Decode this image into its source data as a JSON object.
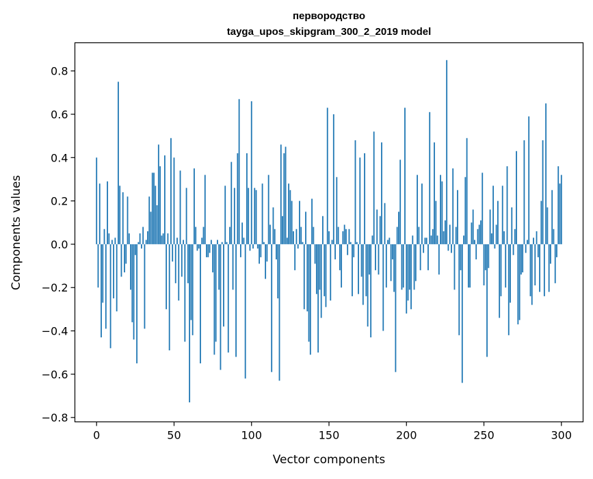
{
  "chart_data": {
    "type": "bar",
    "title": "первородство",
    "subtitle": "tayga_upos_skipgram_300_2_2019 model",
    "xlabel": "Vector components",
    "ylabel": "Components values",
    "xlim": [
      -14,
      314
    ],
    "ylim": [
      -0.82,
      0.93
    ],
    "x_ticks": [
      0,
      50,
      100,
      150,
      200,
      250,
      300
    ],
    "x_tick_labels": [
      "0",
      "50",
      "100",
      "150",
      "200",
      "250",
      "300"
    ],
    "y_ticks": [
      -0.8,
      -0.6,
      -0.4,
      -0.2,
      0.0,
      0.2,
      0.4,
      0.6,
      0.8
    ],
    "y_tick_labels": [
      "−0.8",
      "−0.6",
      "−0.4",
      "−0.2",
      "0.0",
      "0.2",
      "0.4",
      "0.6",
      "0.8"
    ],
    "grid": false,
    "bar_color": "#1f77b4",
    "values": [
      0.4,
      -0.2,
      0.28,
      -0.43,
      -0.27,
      0.07,
      -0.39,
      0.29,
      0.05,
      -0.48,
      0.02,
      -0.25,
      0.03,
      -0.31,
      0.75,
      0.27,
      -0.15,
      0.24,
      -0.13,
      -0.09,
      0.22,
      0.05,
      -0.21,
      -0.36,
      -0.44,
      -0.05,
      -0.55,
      0.01,
      0.05,
      -0.02,
      0.08,
      -0.39,
      0.02,
      0.06,
      0.22,
      0.15,
      0.33,
      0.33,
      0.27,
      0.18,
      0.46,
      0.36,
      0.04,
      0.05,
      0.41,
      -0.3,
      0.05,
      -0.49,
      0.49,
      -0.08,
      0.4,
      -0.18,
      0.03,
      -0.26,
      0.34,
      -0.15,
      0.02,
      -0.45,
      0.26,
      -0.18,
      -0.73,
      -0.35,
      -0.42,
      0.35,
      0.08,
      -0.03,
      -0.02,
      -0.55,
      0.03,
      0.08,
      0.32,
      -0.06,
      -0.06,
      -0.04,
      0.02,
      -0.13,
      -0.51,
      -0.45,
      0.02,
      -0.21,
      -0.58,
      0.01,
      -0.38,
      0.27,
      0.01,
      -0.5,
      0.08,
      0.38,
      -0.21,
      0.26,
      -0.52,
      0.42,
      0.67,
      -0.06,
      0.1,
      0.03,
      -0.62,
      0.42,
      0.26,
      -0.03,
      0.66,
      -0.02,
      0.26,
      0.25,
      -0.02,
      -0.09,
      -0.06,
      0.28,
      0.01,
      -0.16,
      -0.08,
      0.32,
      0.09,
      -0.59,
      0.17,
      0.07,
      -0.07,
      -0.25,
      -0.63,
      0.46,
      0.13,
      0.42,
      0.45,
      0.03,
      0.28,
      0.25,
      0.2,
      0.06,
      -0.12,
      0.07,
      -0.02,
      0.2,
      0.08,
      0.01,
      -0.3,
      0.15,
      -0.31,
      -0.45,
      -0.51,
      0.21,
      0.08,
      -0.09,
      -0.23,
      -0.5,
      -0.21,
      -0.34,
      0.13,
      -0.24,
      -0.29,
      0.63,
      0.06,
      -0.26,
      0.02,
      0.6,
      -0.07,
      0.31,
      0.08,
      -0.12,
      -0.2,
      0.06,
      0.09,
      0.07,
      -0.05,
      0.07,
      0.01,
      -0.24,
      -0.06,
      0.48,
      0.01,
      -0.23,
      0.4,
      -0.15,
      -0.28,
      0.42,
      -0.24,
      -0.38,
      -0.14,
      -0.43,
      0.04,
      0.52,
      -0.12,
      0.16,
      -0.14,
      0.13,
      0.47,
      -0.4,
      0.19,
      -0.2,
      0.02,
      0.03,
      -0.17,
      -0.07,
      -0.22,
      -0.59,
      0.08,
      0.15,
      0.39,
      -0.21,
      -0.2,
      0.63,
      -0.32,
      -0.26,
      -0.21,
      -0.3,
      0.04,
      -0.21,
      -0.17,
      0.32,
      0.08,
      -0.12,
      0.28,
      -0.04,
      0.03,
      0.03,
      -0.12,
      0.61,
      0.04,
      0.07,
      0.47,
      0.2,
      0.04,
      -0.14,
      0.32,
      0.29,
      0.06,
      0.11,
      0.85,
      -0.03,
      0.09,
      -0.04,
      0.35,
      -0.21,
      0.08,
      0.25,
      -0.42,
      -0.12,
      -0.64,
      0.04,
      0.31,
      0.49,
      -0.2,
      -0.2,
      0.1,
      0.16,
      0.02,
      -0.07,
      0.07,
      0.09,
      0.11,
      0.33,
      -0.19,
      -0.12,
      -0.52,
      -0.11,
      0.16,
      0.05,
      0.27,
      -0.02,
      0.09,
      0.2,
      -0.34,
      -0.24,
      0.27,
      0.06,
      -0.2,
      0.36,
      -0.42,
      -0.27,
      0.17,
      -0.05,
      0.07,
      0.43,
      -0.37,
      -0.35,
      -0.14,
      -0.13,
      0.48,
      -0.04,
      0.02,
      0.59,
      -0.24,
      -0.28,
      0.03,
      -0.19,
      0.06,
      -0.06,
      -0.22,
      0.2,
      0.48,
      -0.24,
      0.65,
      0.17,
      -0.22,
      -0.09,
      0.25,
      0.07,
      -0.18,
      -0.06,
      0.36,
      0.28,
      0.32
    ]
  }
}
